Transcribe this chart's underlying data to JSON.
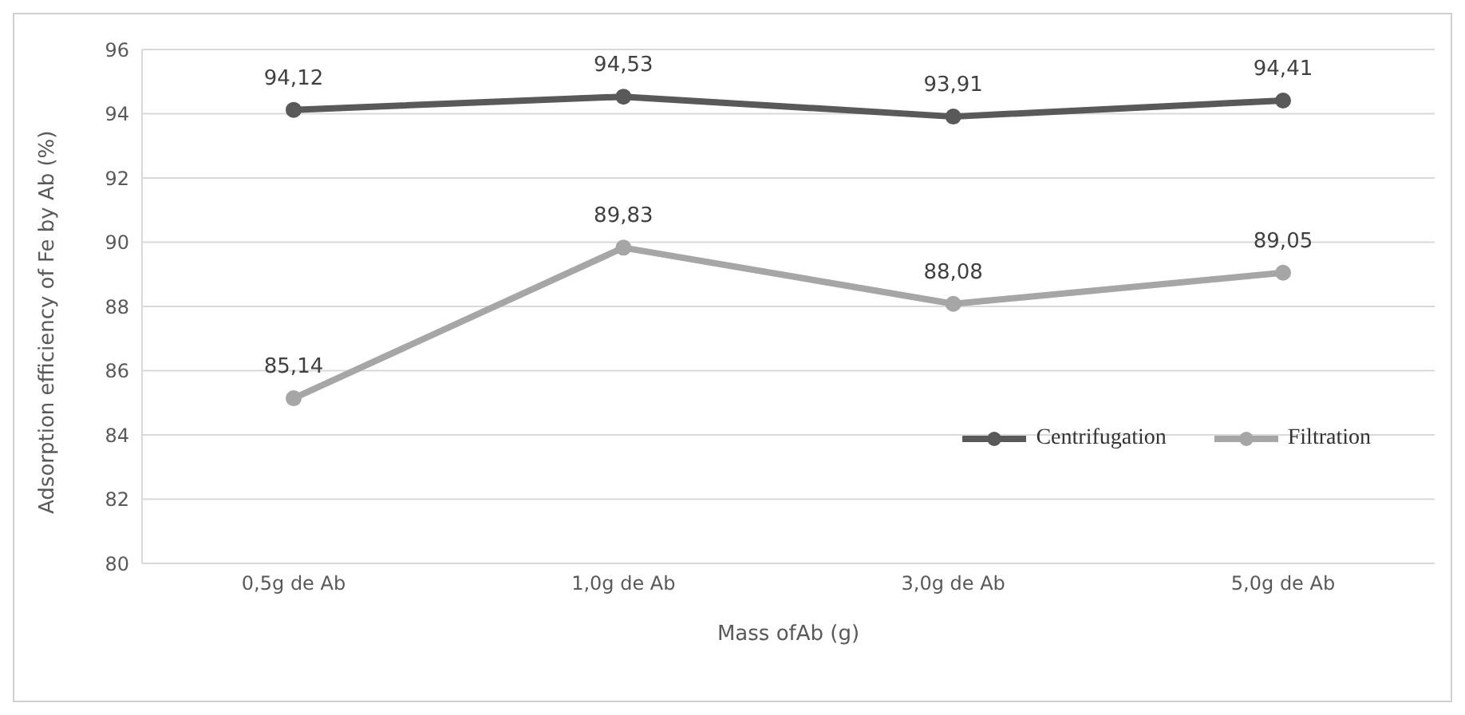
{
  "chart_data": {
    "type": "line",
    "xlabel": "Mass ofAb (g)",
    "ylabel": "Adsorption efficiency of Fe by Ab (%)",
    "categories": [
      "0,5g de Ab",
      "1,0g de Ab",
      "3,0g de Ab",
      "5,0g de Ab"
    ],
    "series": [
      {
        "name": "Centrifugation",
        "color": "#595959",
        "values": [
          94.12,
          94.53,
          93.91,
          94.41
        ],
        "value_labels": [
          "94,12",
          "94,53",
          "93,91",
          "94,41"
        ]
      },
      {
        "name": "Filtration",
        "color": "#a6a6a6",
        "values": [
          85.14,
          89.83,
          88.08,
          89.05
        ],
        "value_labels": [
          "85,14",
          "89,83",
          "88,08",
          "89,05"
        ]
      }
    ],
    "ylim": [
      80,
      96
    ],
    "yticks": [
      80,
      82,
      84,
      86,
      88,
      90,
      92,
      94,
      96
    ],
    "grid": "y",
    "legend": "right",
    "marker": "circle",
    "line_style": "solid"
  }
}
